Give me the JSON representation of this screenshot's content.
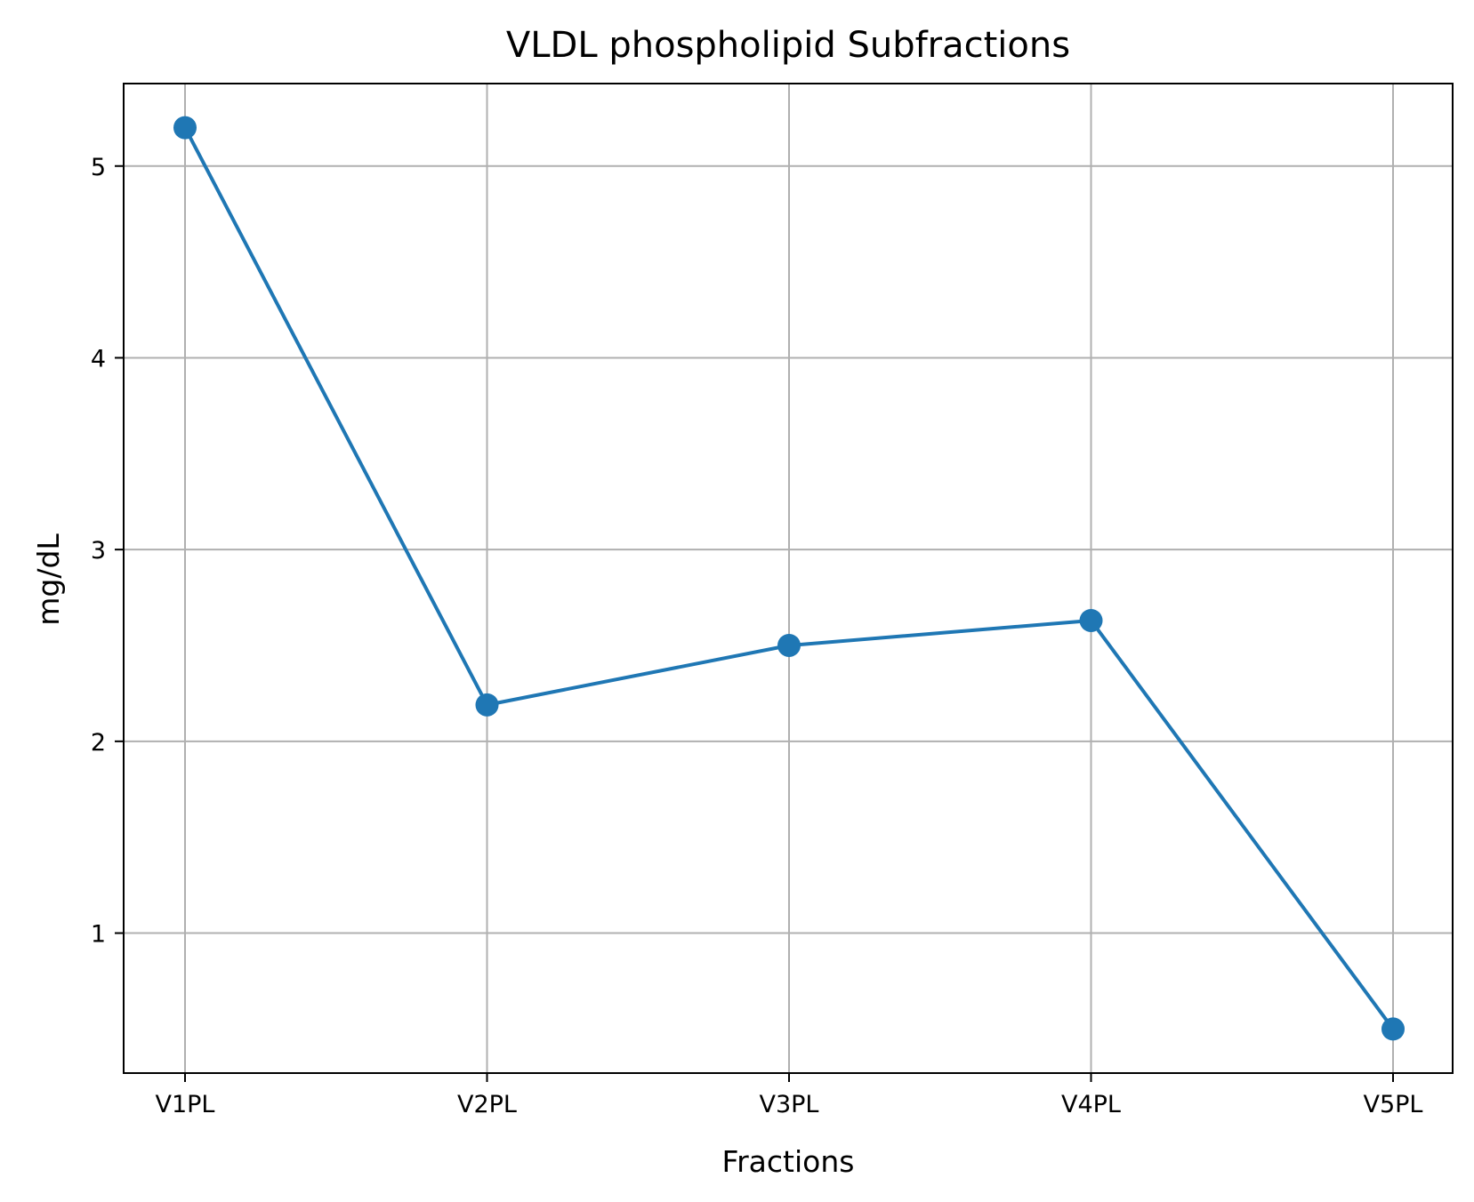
{
  "chart_data": {
    "type": "line",
    "title": "VLDL phospholipid Subfractions",
    "xlabel": "Fractions",
    "ylabel": "mg/dL",
    "categories": [
      "V1PL",
      "V2PL",
      "V3PL",
      "V4PL",
      "V5PL"
    ],
    "series": [
      {
        "values": [
          5.2,
          2.19,
          2.5,
          2.63,
          0.5
        ],
        "color": "#1f77b4",
        "marker": "circle"
      }
    ],
    "ylim": [
      0.27,
      5.43
    ],
    "yticks": [
      1,
      2,
      3,
      4,
      5
    ],
    "grid": true,
    "legend": "none"
  }
}
